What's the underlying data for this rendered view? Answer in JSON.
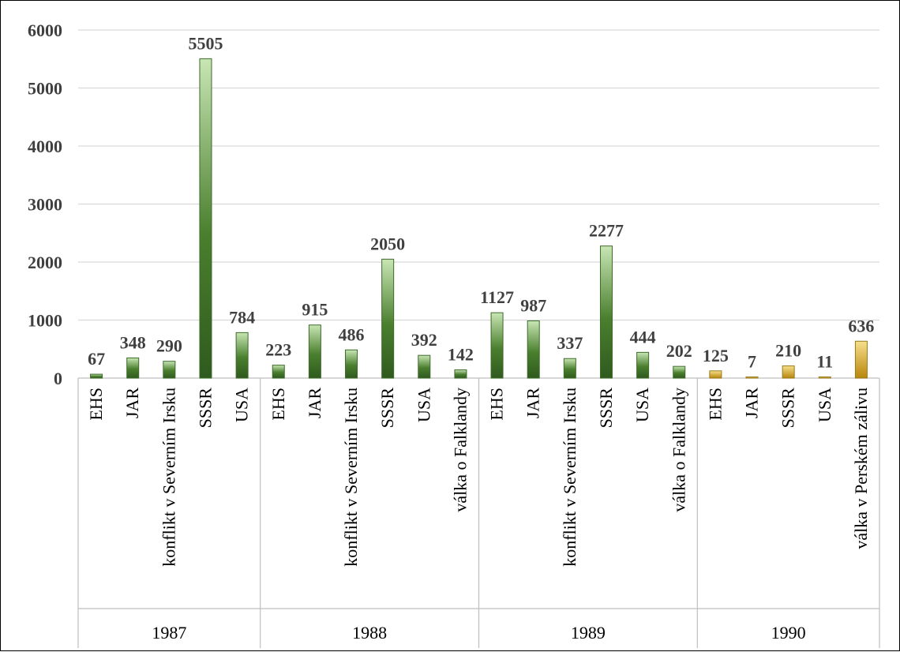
{
  "chart_data": {
    "type": "bar",
    "ylim": [
      0,
      6000
    ],
    "yticks": [
      0,
      1000,
      2000,
      3000,
      4000,
      5000,
      6000
    ],
    "grid": true,
    "legend": "none",
    "colors": {
      "green_top": "#c8e6b4",
      "green_bottom": "#2f5a1e",
      "gold_top": "#f7e08c",
      "gold_bottom": "#b8860b",
      "grid": "#d9d9d9",
      "axis": "#bfbfbf"
    },
    "groups": [
      {
        "year": "1987",
        "bars": [
          {
            "category": "EHS",
            "value": 67
          },
          {
            "category": "JAR",
            "value": 348
          },
          {
            "category": "konflikt v Severním Irsku",
            "value": 290
          },
          {
            "category": "SSSR",
            "value": 5505
          },
          {
            "category": "USA",
            "value": 784
          }
        ]
      },
      {
        "year": "1988",
        "bars": [
          {
            "category": "EHS",
            "value": 223
          },
          {
            "category": "JAR",
            "value": 915
          },
          {
            "category": "konflikt v Severním Irsku",
            "value": 486
          },
          {
            "category": "SSSR",
            "value": 2050
          },
          {
            "category": "USA",
            "value": 392
          },
          {
            "category": "válka o Falklandy",
            "value": 142
          }
        ]
      },
      {
        "year": "1989",
        "bars": [
          {
            "category": "EHS",
            "value": 1127
          },
          {
            "category": "JAR",
            "value": 987
          },
          {
            "category": "konflikt v Severním Irsku",
            "value": 337
          },
          {
            "category": "SSSR",
            "value": 2277
          },
          {
            "category": "USA",
            "value": 444
          },
          {
            "category": "válka o Falklandy",
            "value": 202
          }
        ]
      },
      {
        "year": "1990",
        "bars": [
          {
            "category": "EHS",
            "value": 125
          },
          {
            "category": "JAR",
            "value": 7
          },
          {
            "category": "SSSR",
            "value": 210
          },
          {
            "category": "USA",
            "value": 11
          },
          {
            "category": "válka v Perském zálivu",
            "value": 636
          }
        ]
      }
    ]
  }
}
